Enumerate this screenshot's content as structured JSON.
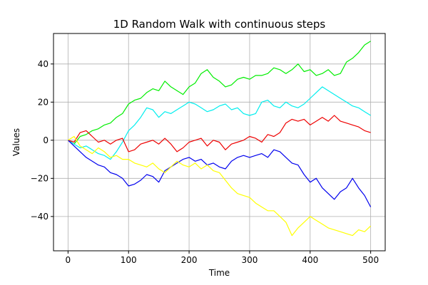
{
  "chart_data": {
    "type": "line",
    "title": "1D Random Walk with continuous steps",
    "xlabel": "Time",
    "ylabel": "Values",
    "xlim": [
      -24,
      524
    ],
    "ylim": [
      -58,
      56
    ],
    "xticks": [
      0,
      100,
      200,
      300,
      400,
      500
    ],
    "yticks": [
      -40,
      -20,
      0,
      20,
      40
    ],
    "grid": true,
    "series": [
      {
        "color": "#00ee00",
        "x": [
          0,
          10,
          20,
          30,
          40,
          50,
          60,
          70,
          80,
          90,
          100,
          110,
          120,
          130,
          140,
          150,
          160,
          170,
          180,
          190,
          200,
          210,
          220,
          230,
          240,
          250,
          260,
          270,
          280,
          290,
          300,
          310,
          320,
          330,
          340,
          350,
          360,
          370,
          380,
          390,
          400,
          410,
          420,
          430,
          440,
          450,
          460,
          470,
          480,
          490,
          500
        ],
        "values": [
          0,
          -2,
          2,
          3,
          5,
          6,
          8,
          9,
          12,
          14,
          19,
          21,
          22,
          25,
          27,
          26,
          31,
          28,
          26,
          24,
          28,
          30,
          35,
          37,
          33,
          31,
          28,
          29,
          32,
          33,
          32,
          34,
          34,
          35,
          38,
          37,
          35,
          37,
          40,
          36,
          37,
          34,
          35,
          37,
          34,
          35,
          41,
          43,
          46,
          50,
          52
        ]
      },
      {
        "color": "#00eeee",
        "x": [
          0,
          10,
          20,
          30,
          40,
          50,
          60,
          70,
          80,
          90,
          100,
          110,
          120,
          130,
          140,
          150,
          160,
          170,
          180,
          190,
          200,
          210,
          220,
          230,
          240,
          250,
          260,
          270,
          280,
          290,
          300,
          310,
          320,
          330,
          340,
          350,
          360,
          370,
          380,
          390,
          400,
          410,
          420,
          430,
          440,
          450,
          460,
          470,
          480,
          490,
          500
        ],
        "values": [
          0,
          -2,
          -4,
          -3,
          -5,
          -7,
          -8,
          -10,
          -6,
          -1,
          5,
          8,
          12,
          17,
          16,
          12,
          15,
          14,
          16,
          18,
          20,
          19,
          17,
          15,
          16,
          18,
          19,
          16,
          17,
          14,
          13,
          14,
          20,
          21,
          18,
          17,
          20,
          18,
          17,
          19,
          22,
          25,
          28,
          26,
          24,
          22,
          20,
          18,
          17,
          15,
          13
        ]
      },
      {
        "color": "#ee0000",
        "x": [
          0,
          10,
          20,
          30,
          40,
          50,
          60,
          70,
          80,
          90,
          100,
          110,
          120,
          130,
          140,
          150,
          160,
          170,
          180,
          190,
          200,
          210,
          220,
          230,
          240,
          250,
          260,
          270,
          280,
          290,
          300,
          310,
          320,
          330,
          340,
          350,
          360,
          370,
          380,
          390,
          400,
          410,
          420,
          430,
          440,
          450,
          460,
          470,
          480,
          490,
          500
        ],
        "values": [
          0,
          -1,
          4,
          5,
          2,
          -1,
          0,
          -2,
          0,
          1,
          -6,
          -5,
          -2,
          -1,
          0,
          -2,
          1,
          -2,
          -6,
          -4,
          -1,
          0,
          1,
          -3,
          0,
          -1,
          -5,
          -2,
          -1,
          0,
          2,
          1,
          -1,
          3,
          2,
          4,
          9,
          11,
          10,
          11,
          8,
          10,
          12,
          10,
          13,
          10,
          9,
          8,
          7,
          5,
          4
        ]
      },
      {
        "color": "#0000ee",
        "x": [
          0,
          10,
          20,
          30,
          40,
          50,
          60,
          70,
          80,
          90,
          100,
          110,
          120,
          130,
          140,
          150,
          160,
          170,
          180,
          190,
          200,
          210,
          220,
          230,
          240,
          250,
          260,
          270,
          280,
          290,
          300,
          310,
          320,
          330,
          340,
          350,
          360,
          370,
          380,
          390,
          400,
          410,
          420,
          430,
          440,
          450,
          460,
          470,
          480,
          490,
          500
        ],
        "values": [
          0,
          -3,
          -6,
          -9,
          -11,
          -13,
          -14,
          -17,
          -18,
          -20,
          -24,
          -23,
          -21,
          -18,
          -19,
          -22,
          -16,
          -14,
          -12,
          -10,
          -9,
          -11,
          -10,
          -13,
          -12,
          -14,
          -15,
          -11,
          -9,
          -8,
          -9,
          -8,
          -7,
          -9,
          -5,
          -6,
          -9,
          -12,
          -13,
          -18,
          -22,
          -20,
          -25,
          -28,
          -31,
          -27,
          -25,
          -20,
          -25,
          -29,
          -35
        ]
      },
      {
        "color": "#ffff00",
        "x": [
          0,
          10,
          20,
          30,
          40,
          50,
          60,
          70,
          80,
          90,
          100,
          110,
          120,
          130,
          140,
          150,
          160,
          170,
          180,
          190,
          200,
          210,
          220,
          230,
          240,
          250,
          260,
          270,
          280,
          290,
          300,
          310,
          320,
          330,
          340,
          350,
          360,
          370,
          380,
          390,
          400,
          410,
          420,
          430,
          440,
          450,
          460,
          470,
          480,
          490,
          500
        ],
        "values": [
          0,
          2,
          -3,
          -5,
          -7,
          -4,
          -6,
          -9,
          -8,
          -10,
          -10,
          -12,
          -13,
          -14,
          -12,
          -15,
          -17,
          -14,
          -11,
          -13,
          -14,
          -12,
          -15,
          -13,
          -16,
          -17,
          -21,
          -25,
          -28,
          -29,
          -30,
          -33,
          -35,
          -37,
          -37,
          -40,
          -43,
          -50,
          -46,
          -43,
          -40,
          -42,
          -44,
          -46,
          -47,
          -48,
          -49,
          -50,
          -47,
          -48,
          -45
        ]
      }
    ]
  }
}
